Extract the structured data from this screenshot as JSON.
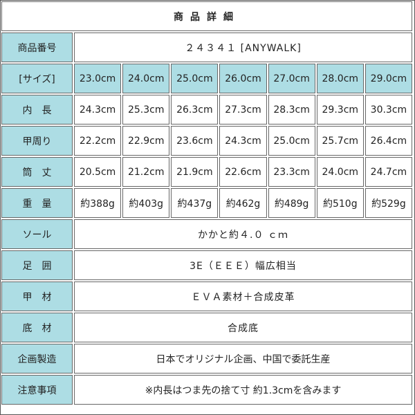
{
  "title": "商品詳細",
  "rows": {
    "product_no": {
      "label": "商品番号",
      "value": "２４３４１ [ANYWALK]"
    },
    "size": {
      "label": "[サイズ]",
      "values": [
        "23.0cm",
        "24.0cm",
        "25.0cm",
        "26.0cm",
        "27.0cm",
        "28.0cm",
        "29.0cm"
      ]
    },
    "inner_length": {
      "label": "内　長",
      "values": [
        "24.3cm",
        "25.3cm",
        "26.3cm",
        "27.3cm",
        "28.3cm",
        "29.3cm",
        "30.3cm"
      ]
    },
    "instep": {
      "label": "甲周り",
      "values": [
        "22.2cm",
        "22.9cm",
        "23.6cm",
        "24.3cm",
        "25.0cm",
        "25.7cm",
        "26.4cm"
      ]
    },
    "shaft": {
      "label": "筒　丈",
      "values": [
        "20.5cm",
        "21.2cm",
        "21.9cm",
        "22.6cm",
        "23.3cm",
        "24.0cm",
        "24.7cm"
      ]
    },
    "weight": {
      "label": "重　量",
      "values": [
        "約388g",
        "約403g",
        "約437g",
        "約462g",
        "約489g",
        "約510g",
        "約529g"
      ]
    },
    "sole": {
      "label": "ソール",
      "value": "かかと約４.０ ｃｍ"
    },
    "width": {
      "label": "足　囲",
      "value": "3E（ＥＥＥ）幅広相当"
    },
    "upper": {
      "label": "甲　材",
      "value": "ＥＶＡ素材＋合成皮革"
    },
    "bottom": {
      "label": "底　材",
      "value": "合成底"
    },
    "manufacture": {
      "label": "企画製造",
      "value": "日本でオリジナル企画、中国で委託生産"
    },
    "notes": {
      "label": "注意事項",
      "value": "※内長はつま先の捨て寸 約1.3cmを含みます"
    }
  },
  "colors": {
    "label_bg": "#addde4",
    "border": "#666666"
  }
}
